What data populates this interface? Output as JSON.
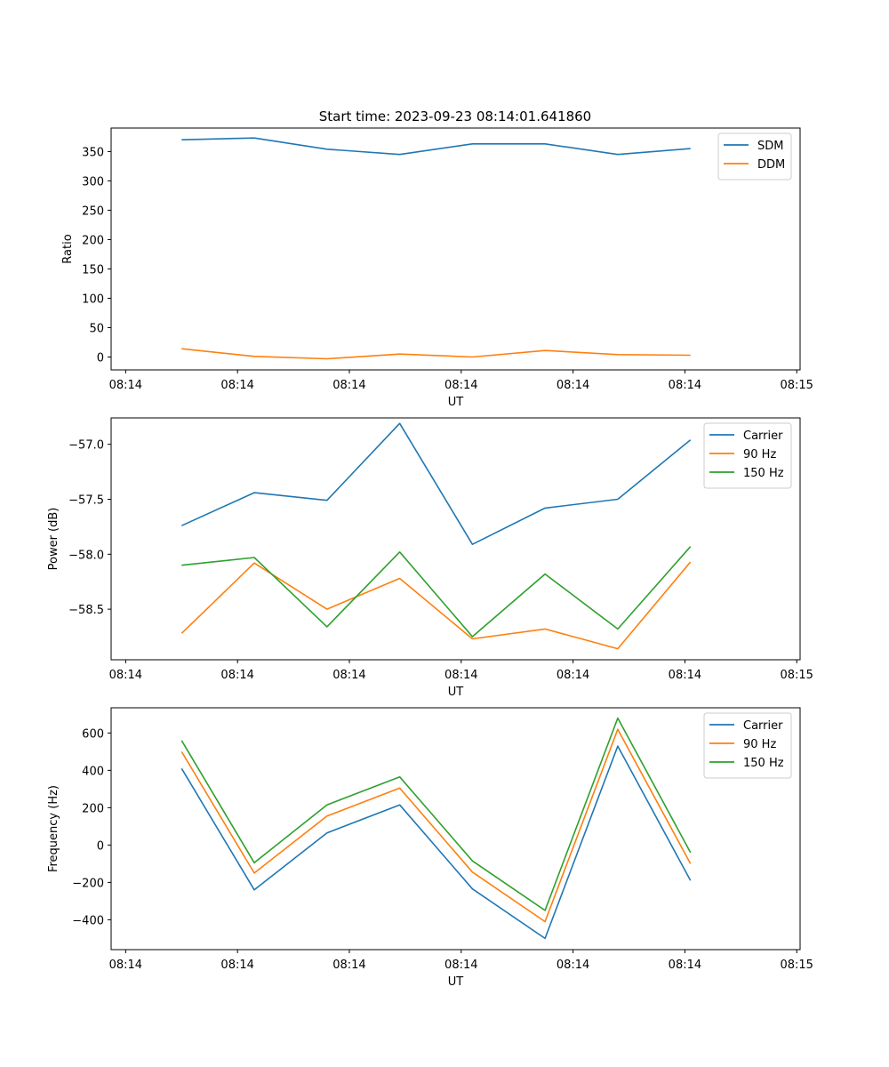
{
  "figure_title": "Start time: 2023-09-23 08:14:01.641860",
  "colors": {
    "c1": "#1f77b4",
    "c2": "#ff7f0e",
    "c3": "#2ca02c"
  },
  "chart_data": [
    {
      "type": "line",
      "title": "Start time: 2023-09-23 08:14:01.641860",
      "xlabel": "UT",
      "ylabel": "Ratio",
      "x_tick_labels": [
        "08:14",
        "08:14",
        "08:14",
        "08:14",
        "08:14",
        "08:14",
        "08:15"
      ],
      "x_ticks": [
        0,
        1,
        2,
        3,
        4,
        5,
        6
      ],
      "xlim": [
        -0.13,
        6.03
      ],
      "x": [
        0.5,
        1.15,
        1.8,
        2.45,
        3.1,
        3.75,
        4.4,
        5.05
      ],
      "ylim": [
        -22,
        390
      ],
      "y_ticks": [
        0,
        50,
        100,
        150,
        200,
        250,
        300,
        350
      ],
      "y_tick_labels": [
        "0",
        "50",
        "100",
        "150",
        "200",
        "250",
        "300",
        "350"
      ],
      "legend_position": "top-right",
      "series": [
        {
          "name": "SDM",
          "color": "#1f77b4",
          "values": [
            370,
            373,
            354,
            345,
            363,
            363,
            345,
            355
          ]
        },
        {
          "name": "DDM",
          "color": "#ff7f0e",
          "values": [
            14,
            1,
            -3,
            5,
            0,
            11,
            4,
            3
          ]
        }
      ]
    },
    {
      "type": "line",
      "title": "",
      "xlabel": "UT",
      "ylabel": "Power (dB)",
      "x_tick_labels": [
        "08:14",
        "08:14",
        "08:14",
        "08:14",
        "08:14",
        "08:14",
        "08:15"
      ],
      "x_ticks": [
        0,
        1,
        2,
        3,
        4,
        5,
        6
      ],
      "xlim": [
        -0.13,
        6.03
      ],
      "x": [
        0.5,
        1.15,
        1.8,
        2.45,
        3.1,
        3.75,
        4.4,
        5.05
      ],
      "ylim": [
        -58.96,
        -56.76
      ],
      "y_ticks": [
        -58.5,
        -58.0,
        -57.5,
        -57.0
      ],
      "y_tick_labels": [
        "−58.5",
        "−58.0",
        "−57.5",
        "−57.0"
      ],
      "legend_position": "top-right",
      "series": [
        {
          "name": "Carrier",
          "color": "#1f77b4",
          "values": [
            -57.74,
            -57.44,
            -57.51,
            -56.81,
            -57.91,
            -57.58,
            -57.5,
            -56.96
          ]
        },
        {
          "name": "90 Hz",
          "color": "#ff7f0e",
          "values": [
            -58.72,
            -58.08,
            -58.5,
            -58.22,
            -58.77,
            -58.68,
            -58.86,
            -58.07
          ]
        },
        {
          "name": "150 Hz",
          "color": "#2ca02c",
          "values": [
            -58.1,
            -58.03,
            -58.66,
            -57.98,
            -58.75,
            -58.18,
            -58.68,
            -57.93
          ]
        }
      ]
    },
    {
      "type": "line",
      "title": "",
      "xlabel": "UT",
      "ylabel": "Frequency (Hz)",
      "x_tick_labels": [
        "08:14",
        "08:14",
        "08:14",
        "08:14",
        "08:14",
        "08:14",
        "08:15"
      ],
      "x_ticks": [
        0,
        1,
        2,
        3,
        4,
        5,
        6
      ],
      "xlim": [
        -0.13,
        6.03
      ],
      "x": [
        0.5,
        1.15,
        1.8,
        2.45,
        3.1,
        3.75,
        4.4,
        5.05
      ],
      "ylim": [
        -560,
        735
      ],
      "y_ticks": [
        -400,
        -200,
        0,
        200,
        400,
        600
      ],
      "y_tick_labels": [
        "−400",
        "−200",
        "0",
        "200",
        "400",
        "600"
      ],
      "legend_position": "top-right",
      "series": [
        {
          "name": "Carrier",
          "color": "#1f77b4",
          "values": [
            410,
            -240,
            65,
            215,
            -235,
            -500,
            530,
            -190
          ]
        },
        {
          "name": "90 Hz",
          "color": "#ff7f0e",
          "values": [
            500,
            -150,
            155,
            305,
            -145,
            -410,
            620,
            -100
          ]
        },
        {
          "name": "150 Hz",
          "color": "#2ca02c",
          "values": [
            560,
            -95,
            215,
            365,
            -85,
            -350,
            680,
            -40
          ]
        }
      ]
    }
  ]
}
